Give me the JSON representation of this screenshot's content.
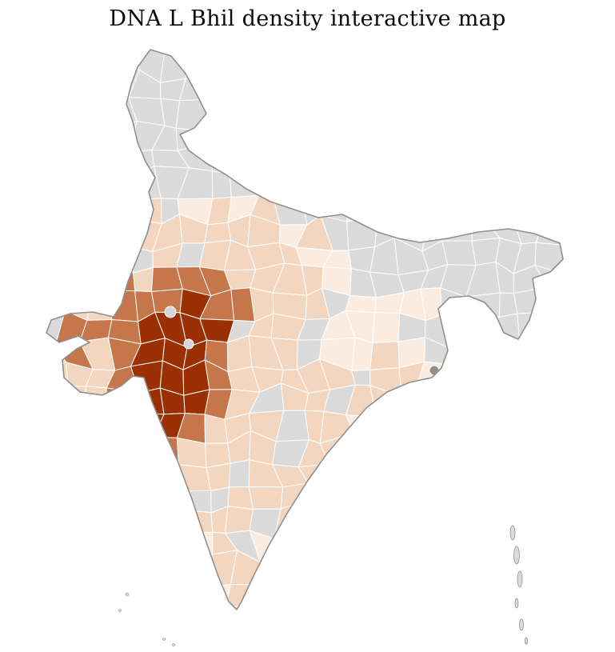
{
  "title": "DNA L Bhil density interactive map",
  "map": {
    "density_scale": {
      "no_data": "#dbdbdb",
      "very_low": "#fbece1",
      "low": "#f3d6c0",
      "medium": "#c5764a",
      "high": "#9a3004"
    },
    "outline_color": "#8f8f8f",
    "district_border_color": "#ffffff",
    "inner_gray_patch": "#d6d6d6",
    "dark_gray_patch": "#8f8f8f"
  }
}
